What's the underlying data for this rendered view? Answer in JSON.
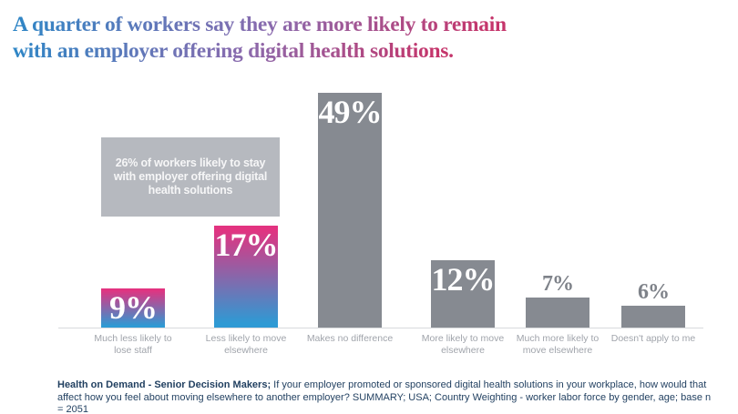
{
  "title": {
    "lines": [
      "A quarter of workers say they are more likely to remain",
      "with an employer offering digital health solutions."
    ]
  },
  "annotation": {
    "lines": [
      "26% of workers likely to stay",
      "with employer offering digital",
      "health solutions"
    ]
  },
  "chart_data": {
    "type": "bar",
    "categories": [
      "Much less likely to\nlose staff",
      "Less likely to move\nelsewhere",
      "Makes no difference",
      "More likely to move\nelsewhere",
      "Much more likely to\nmove elsewhere",
      "Doesn't apply to me"
    ],
    "values": [
      9,
      17,
      49,
      12,
      7,
      6
    ],
    "value_labels": [
      "9%",
      "17%",
      "49%",
      "12%",
      "7%",
      "6%"
    ],
    "unit": "%",
    "bar_styles": [
      "gradient",
      "gradient",
      "gray",
      "gray",
      "gray",
      "gray"
    ],
    "title": "",
    "xlabel": "",
    "ylabel": "",
    "ylim": [
      0,
      52
    ],
    "grid": false,
    "legend": null,
    "annotation": "26% of workers likely to stay with employer offering digital health solutions"
  },
  "colors": {
    "bar_gradient_top": "#e23380",
    "bar_gradient_bottom": "#2e9ad4",
    "bar_gray": "#868a91",
    "annotation_bg": "#b6b9bf",
    "annotation_text": "#f0f1f3",
    "title_gradient_start": "#2e86c6",
    "title_gradient_mid": "#8a6bae",
    "title_gradient_end": "#c5356b",
    "axis_label": "#a0a4ab",
    "outside_value_label": "#7e8289",
    "footnote_text": "#1f3e5f",
    "axis_line": "#d8dadd"
  },
  "footnote": {
    "bold": "Health on Demand - Senior Decision Makers;",
    "text": " If your employer promoted or sponsored digital health solutions in your workplace, how would that affect how you feel about moving elsewhere to another employer? SUMMARY; USA; Country Weighting - worker labor force by gender, age; base n = 2051"
  }
}
